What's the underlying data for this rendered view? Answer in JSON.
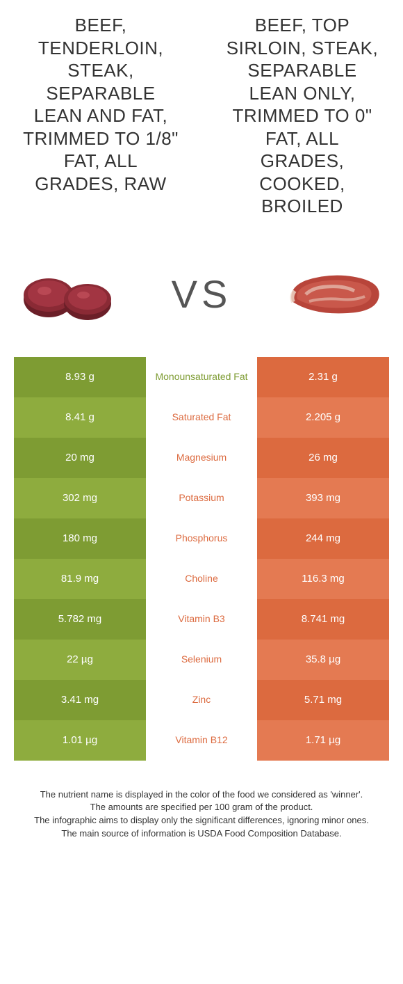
{
  "titles": {
    "left": "BEEF, TENDERLOIN, STEAK, SEPARABLE LEAN AND FAT, TRIMMED TO 1/8\" FAT, ALL GRADES, RAW",
    "right": "BEEF, TOP SIRLOIN, STEAK, SEPARABLE LEAN ONLY, TRIMMED TO 0\" FAT, ALL GRADES, COOKED, BROILED"
  },
  "vs_label": "VS",
  "colors": {
    "left_odd": "#7e9c33",
    "left_even": "#8eac3e",
    "right_odd": "#dc6a3f",
    "right_even": "#e47a52",
    "winner_left": "#7e9c33",
    "winner_right": "#dc6a3f",
    "title_text": "#333333",
    "vs_text": "#555555",
    "footer_text": "#333333"
  },
  "rows": [
    {
      "nutrient": "Monounsaturated Fat",
      "left": "8.93 g",
      "right": "2.31 g",
      "winner": "left"
    },
    {
      "nutrient": "Saturated Fat",
      "left": "8.41 g",
      "right": "2.205 g",
      "winner": "right"
    },
    {
      "nutrient": "Magnesium",
      "left": "20 mg",
      "right": "26 mg",
      "winner": "right"
    },
    {
      "nutrient": "Potassium",
      "left": "302 mg",
      "right": "393 mg",
      "winner": "right"
    },
    {
      "nutrient": "Phosphorus",
      "left": "180 mg",
      "right": "244 mg",
      "winner": "right"
    },
    {
      "nutrient": "Choline",
      "left": "81.9 mg",
      "right": "116.3 mg",
      "winner": "right"
    },
    {
      "nutrient": "Vitamin B3",
      "left": "5.782 mg",
      "right": "8.741 mg",
      "winner": "right"
    },
    {
      "nutrient": "Selenium",
      "left": "22 µg",
      "right": "35.8 µg",
      "winner": "right"
    },
    {
      "nutrient": "Zinc",
      "left": "3.41 mg",
      "right": "5.71 mg",
      "winner": "right"
    },
    {
      "nutrient": "Vitamin B12",
      "left": "1.01 µg",
      "right": "1.71 µg",
      "winner": "right"
    }
  ],
  "footer": {
    "line1": "The nutrient name is displayed in the color of the food we considered as 'winner'.",
    "line2": "The amounts are specified per 100 gram of the product.",
    "line3": "The infographic aims to display only the significant differences, ignoring minor ones.",
    "line4": "The main source of information is USDA Food Composition Database."
  }
}
